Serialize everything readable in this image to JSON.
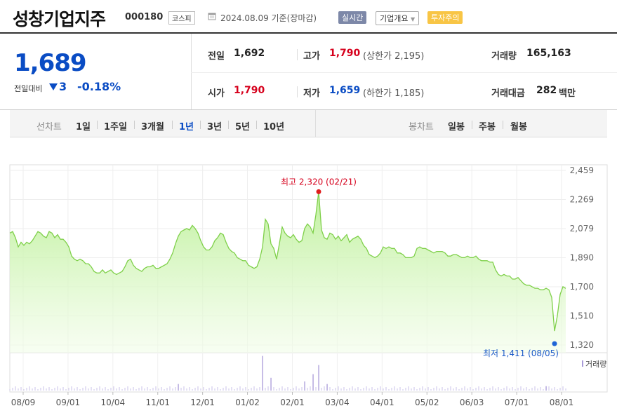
{
  "header": {
    "company": "성창기업지주",
    "code": "000180",
    "market": "코스피",
    "as_of": "2024.08.09 기준(장마감)",
    "badge_realtime": "실시간",
    "badge_corp": "기업개요",
    "badge_warning": "투자주의"
  },
  "price": {
    "current": "1,689",
    "change_label": "전일대비",
    "change_value": "3",
    "change_pct": "-0.18%",
    "direction": "down"
  },
  "stats": {
    "prev_close_label": "전일",
    "prev_close": "1,692",
    "high_label": "고가",
    "high": "1,790",
    "upper_limit": "(상한가 2,195)",
    "volume_label": "거래량",
    "volume": "165,163",
    "open_label": "시가",
    "open": "1,790",
    "low_label": "저가",
    "low": "1,659",
    "lower_limit": "(하한가 1,185)",
    "value_label": "거래대금",
    "value": "282",
    "value_unit": "백만"
  },
  "tabs": {
    "line_label": "선차트",
    "periods": [
      "1일",
      "1주일",
      "3개월",
      "1년",
      "3년",
      "5년",
      "10년"
    ],
    "selected": "1년",
    "candle_label": "봉차트",
    "candles": [
      "일봉",
      "주봉",
      "월봉"
    ]
  },
  "colors": {
    "price_blue": "#0a4cc4",
    "price_red": "#d6001c",
    "line_green": "#7fd04a",
    "fill_green": "#c8f3a8"
  },
  "chart_data": {
    "type": "area",
    "y_ticks": [
      "2,459",
      "2,269",
      "2,079",
      "1,890",
      "1,700",
      "1,510",
      "1,320"
    ],
    "ylim": [
      1320,
      2459
    ],
    "x_ticks": [
      "08/09",
      "09/01",
      "10/04",
      "11/01",
      "12/01",
      "01/02",
      "02/01",
      "03/04",
      "04/01",
      "05/02",
      "06/03",
      "07/01",
      "08/01"
    ],
    "high_label": "최고 2,320 (02/21)",
    "low_label": "최저 1,411 (08/05)",
    "volume_label": "거래량",
    "price_series": [
      2050,
      2060,
      2020,
      1960,
      1990,
      1970,
      1990,
      1980,
      2000,
      2030,
      2060,
      2050,
      2030,
      2020,
      2060,
      2050,
      2020,
      2040,
      2010,
      2010,
      1990,
      1960,
      1900,
      1880,
      1870,
      1880,
      1870,
      1850,
      1850,
      1830,
      1800,
      1790,
      1790,
      1810,
      1790,
      1800,
      1810,
      1790,
      1780,
      1790,
      1800,
      1830,
      1870,
      1880,
      1840,
      1820,
      1810,
      1800,
      1820,
      1830,
      1830,
      1840,
      1820,
      1820,
      1830,
      1840,
      1850,
      1880,
      1920,
      1980,
      2030,
      2060,
      2070,
      2080,
      2070,
      2100,
      2080,
      2050,
      2000,
      1960,
      1940,
      1940,
      1960,
      2000,
      2020,
      2050,
      2040,
      1990,
      1950,
      1930,
      1920,
      1890,
      1880,
      1870,
      1870,
      1840,
      1830,
      1820,
      1830,
      1880,
      1960,
      2140,
      2110,
      1980,
      1950,
      1880,
      1980,
      2090,
      2050,
      2030,
      2020,
      2040,
      2010,
      1990,
      2000,
      2080,
      2110,
      2090,
      2050,
      2170,
      2320,
      2070,
      2020,
      2010,
      2050,
      2040,
      2010,
      2030,
      2000,
      2020,
      2040,
      1990,
      2010,
      2020,
      2030,
      2010,
      1970,
      1950,
      1910,
      1900,
      1890,
      1900,
      1920,
      1960,
      1950,
      1960,
      1950,
      1950,
      1920,
      1920,
      1910,
      1890,
      1890,
      1890,
      1900,
      1950,
      1960,
      1950,
      1950,
      1940,
      1930,
      1920,
      1930,
      1930,
      1930,
      1920,
      1900,
      1900,
      1910,
      1910,
      1900,
      1890,
      1890,
      1900,
      1890,
      1890,
      1900,
      1880,
      1870,
      1870,
      1870,
      1860,
      1860,
      1810,
      1780,
      1770,
      1780,
      1770,
      1770,
      1750,
      1750,
      1760,
      1740,
      1720,
      1710,
      1710,
      1700,
      1690,
      1690,
      1680,
      1680,
      1690,
      1680,
      1630,
      1411,
      1510,
      1650,
      1700,
      1689
    ],
    "volume_spikes": [
      {
        "i": 90,
        "v": 0.95
      },
      {
        "i": 60,
        "v": 0.18
      },
      {
        "i": 110,
        "v": 0.7
      },
      {
        "i": 93,
        "v": 0.35
      },
      {
        "i": 108,
        "v": 0.45
      },
      {
        "i": 105,
        "v": 0.25
      },
      {
        "i": 113,
        "v": 0.18
      },
      {
        "i": 191,
        "v": 0.12
      }
    ]
  }
}
